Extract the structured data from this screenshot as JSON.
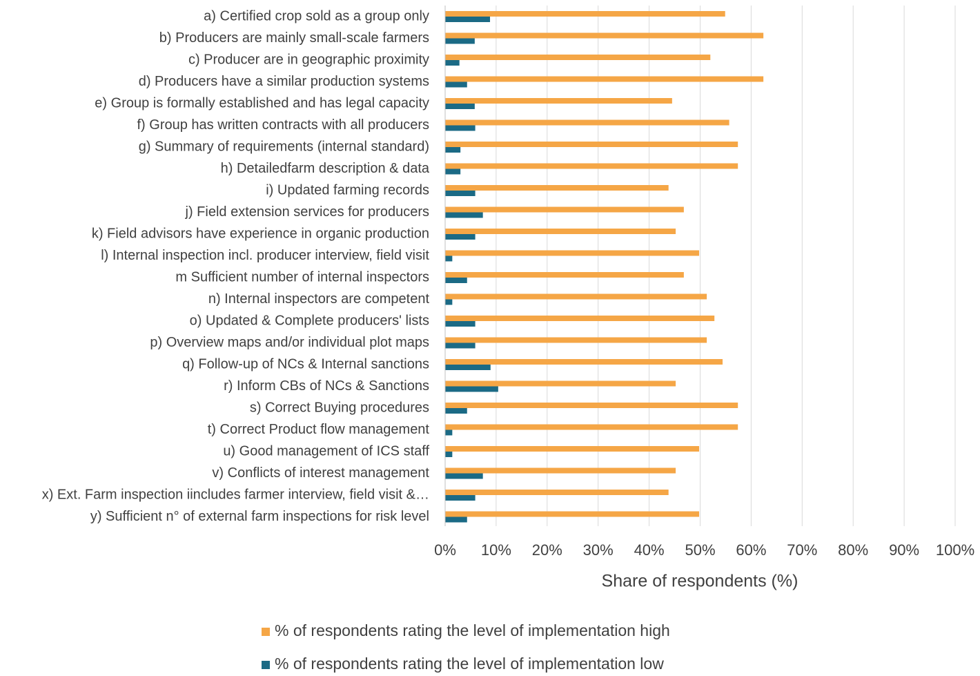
{
  "chart_data": {
    "type": "barh",
    "categories": [
      "a) Certified crop sold as a group only",
      "b) Producers are mainly small-scale farmers",
      "c) Producer are in geographic proximity",
      "d) Producers have a similar production systems",
      "e) Group is formally established and has legal capacity",
      "f) Group has written contracts with all producers",
      "g) Summary of requirements (internal standard)",
      "h) Detailedfarm description & data",
      "i) Updated farming records",
      "j) Field extension services  for producers",
      "k) Field advisors have experience in organic production",
      "l) Internal inspection incl. producer interview, field visit",
      "m Sufficient number of internal inspectors",
      "n) Internal inspectors are competent",
      "o) Updated & Complete producers' lists",
      "p) Overview maps and/or individual plot maps",
      "q) Follow-up of NCs & Internal sanctions",
      "r) Inform CBs of NCs & Sanctions",
      "s) Correct Buying procedures",
      "t) Correct Product flow management",
      "u) Good management of ICS staff",
      "v) Conflicts of interest management",
      "x) Ext. Farm inspection iincludes farmer interview, field visit &…",
      "y) Sufficient n° of external farm inspections for risk level"
    ],
    "series": [
      {
        "name": "% of respondents rating the level of implementation high",
        "color": "#f5a646",
        "values": [
          54.9,
          62.4,
          52,
          62.4,
          44.5,
          55.7,
          57.4,
          57.4,
          43.8,
          46.8,
          45.2,
          49.8,
          46.8,
          51.3,
          52.8,
          51.3,
          54.4,
          45.2,
          57.4,
          57.4,
          49.8,
          45.2,
          43.8,
          49.8
        ]
      },
      {
        "name": "% of respondents rating the level of implementation low",
        "color": "#1b6a85",
        "values": [
          8.8,
          5.8,
          2.8,
          4.3,
          5.8,
          5.9,
          3,
          3,
          5.9,
          7.4,
          5.9,
          1.4,
          4.3,
          1.4,
          5.9,
          5.9,
          8.9,
          10.4,
          4.3,
          1.4,
          1.4,
          7.4,
          5.9,
          4.3
        ]
      }
    ],
    "xlabel": "Share of respondents (%)",
    "xlim": [
      0,
      100
    ],
    "xticks": [
      {
        "value": 0,
        "label": "0%"
      },
      {
        "value": 10,
        "label": "10%"
      },
      {
        "value": 20,
        "label": "20%"
      },
      {
        "value": 30,
        "label": "30%"
      },
      {
        "value": 40,
        "label": "40%"
      },
      {
        "value": 50,
        "label": "50%"
      },
      {
        "value": 60,
        "label": "60%"
      },
      {
        "value": 70,
        "label": "70%"
      },
      {
        "value": 80,
        "label": "80%"
      },
      {
        "value": 90,
        "label": "90%"
      },
      {
        "value": 100,
        "label": "100%"
      }
    ],
    "grid": true,
    "legend": "bottom"
  }
}
